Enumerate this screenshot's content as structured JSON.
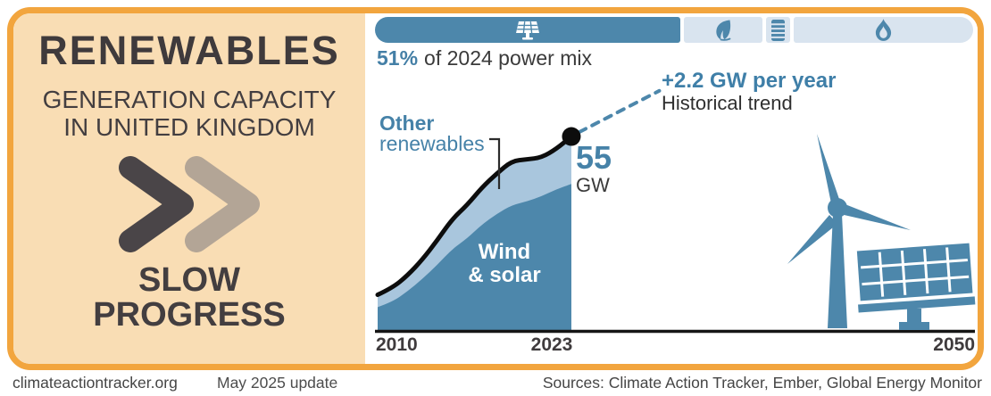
{
  "left_panel": {
    "title": "RENEWABLES",
    "subtitle": [
      "GENERATION CAPACITY",
      "IN UNITED KINGDOM"
    ],
    "rating": [
      "SLOW",
      "PROGRESS"
    ]
  },
  "power_mix_bar": {
    "caption": {
      "value": "51%",
      "text": "of 2024 power mix"
    },
    "segments": [
      {
        "name": "renewables",
        "icon": "solar-panel-icon",
        "width_pct": 51,
        "active": true
      },
      {
        "name": "bio",
        "icon": "leaf-icon",
        "width_pct": 13,
        "active": false
      },
      {
        "name": "oil",
        "icon": "barrel-icon",
        "width_pct": 4,
        "active": false
      },
      {
        "name": "gas",
        "icon": "flame-icon",
        "width_pct": 30,
        "active": false
      }
    ]
  },
  "labels": {
    "other_renewables_1": "Other",
    "other_renewables_2": "renewables",
    "value_2023": "55",
    "value_unit": "GW",
    "trend_label": "+2.2 GW per year",
    "trend_sublabel": "Historical trend",
    "wind_solar_1": "Wind",
    "wind_solar_2": "& solar",
    "x_ticks": [
      "2010",
      "2023",
      "2050"
    ]
  },
  "chart_data": {
    "type": "area",
    "stacked": true,
    "title": "Renewables generation capacity in United Kingdom",
    "unit": "GW",
    "x_years": [
      2010,
      2011,
      2012,
      2013,
      2014,
      2015,
      2016,
      2017,
      2018,
      2019,
      2020,
      2021,
      2022,
      2023
    ],
    "series": [
      {
        "name": "Wind & solar",
        "color": "#4d87ab",
        "values": [
          6.5,
          8,
          11,
          14.5,
          18.5,
          23,
          26,
          30,
          33,
          35.5,
          36.5,
          38,
          40,
          41.5
        ]
      },
      {
        "name": "Other renewables",
        "color": "#a9c6dd",
        "values": [
          3.5,
          4,
          4.5,
          5.5,
          7,
          8.5,
          9.5,
          10.5,
          11.5,
          12.5,
          12,
          11,
          11.5,
          13.5
        ]
      }
    ],
    "total_2023_gw": 55,
    "trend": {
      "label": "+2.2 GW per year",
      "name": "Historical trend",
      "rate_gw_per_year": 2.2,
      "from_year": 2023,
      "to_year_drawn": 2029
    },
    "x_ticks": [
      2010,
      2023,
      2050
    ],
    "xlim": [
      2010,
      2050
    ],
    "ylim": [
      0,
      70
    ],
    "grid": false,
    "legend_position": "inline"
  },
  "colors": {
    "accent_blue": "#4d87ab",
    "light_blue": "#a9c6dd",
    "bar_inactive": "#d9e4ef",
    "border_orange": "#f2a53e",
    "panel_tan": "#f9ddb4",
    "dark_text": "#433e40",
    "chevron_dark": "#4a4548",
    "chevron_light": "#b3a596"
  },
  "footer": {
    "site": "climateactiontracker.org",
    "update": "May 2025 update",
    "sources": "Sources: Climate Action Tracker, Ember, Global Energy Monitor"
  }
}
